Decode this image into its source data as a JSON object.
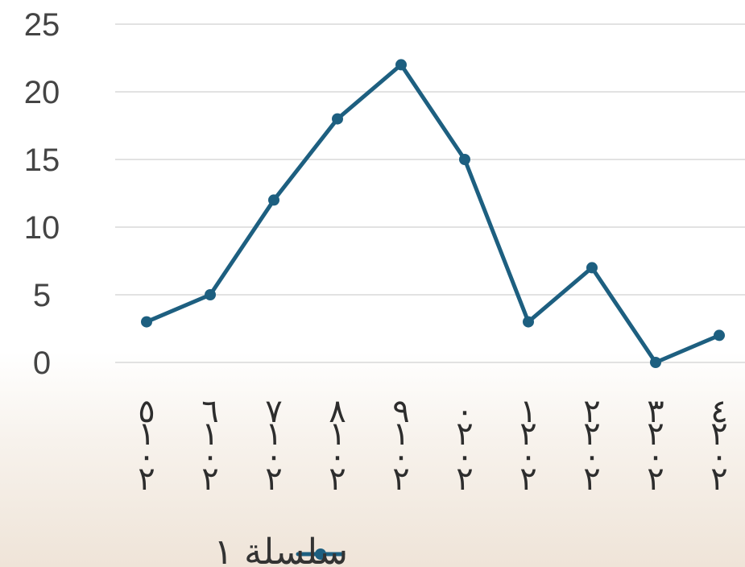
{
  "chart_data": {
    "type": "line",
    "categories": [
      [
        "٥",
        "١",
        "٠",
        "٢"
      ],
      [
        "٦",
        "١",
        "٠",
        "٢"
      ],
      [
        "٧",
        "١",
        "٠",
        "٢"
      ],
      [
        "٨",
        "١",
        "٠",
        "٢"
      ],
      [
        "٩",
        "١",
        "٠",
        "٢"
      ],
      [
        "٠",
        "٢",
        "٠",
        "٢"
      ],
      [
        "١",
        "٢",
        "٠",
        "٢"
      ],
      [
        "٢",
        "٢",
        "٠",
        "٢"
      ],
      [
        "٣",
        "٢",
        "٠",
        "٢"
      ],
      [
        "٤",
        "٢",
        "٠",
        "٢"
      ]
    ],
    "series": [
      {
        "name": "سلسلة ١",
        "values": [
          3,
          5,
          12,
          18,
          22,
          15,
          3,
          7,
          0,
          2
        ],
        "color": "#1d5f80"
      }
    ],
    "ylim": [
      0,
      25
    ],
    "yticks": [
      "0",
      "5",
      "10",
      "15",
      "20",
      "25"
    ],
    "grid": true,
    "legend": "bottom-center"
  }
}
